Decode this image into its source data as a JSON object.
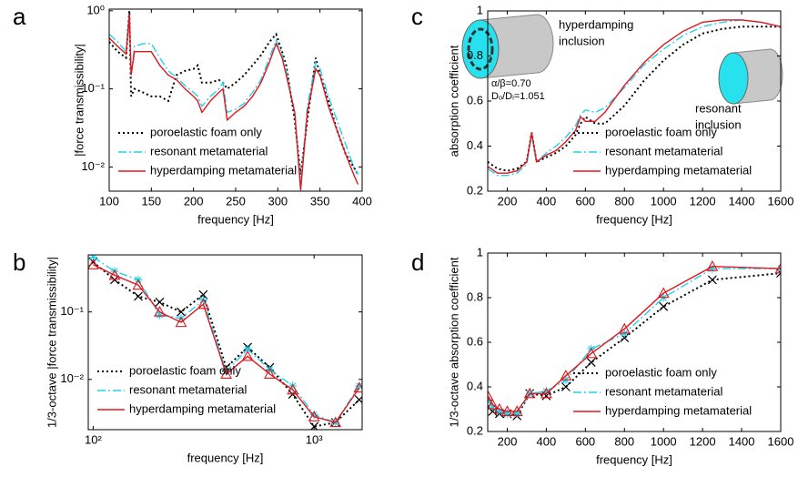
{
  "chart_data": [
    {
      "panel": "a",
      "type": "line",
      "xlabel": "frequency [Hz]",
      "ylabel": "|force transmissibility|",
      "xscale": "linear",
      "yscale": "log",
      "xlim": [
        100,
        400
      ],
      "ylim": [
        0.0049,
        1.05
      ],
      "xticks": [
        100,
        150,
        200,
        250,
        300,
        350,
        400
      ],
      "yticks": [
        {
          "value": 1,
          "label": "10⁰"
        },
        {
          "value": 0.1,
          "label": "10⁻¹"
        },
        {
          "value": 0.01,
          "label": "10⁻²"
        }
      ],
      "legend": "lower left",
      "x": [
        100,
        110,
        120,
        124,
        126,
        130,
        140,
        150,
        160,
        170,
        180,
        190,
        200,
        205,
        210,
        220,
        230,
        235,
        240,
        250,
        260,
        270,
        280,
        290,
        298,
        305,
        310,
        320,
        327,
        335,
        345,
        350,
        360,
        370,
        380,
        390,
        395
      ],
      "series": [
        {
          "name": "poroelastic foam only",
          "color": "#000000",
          "linestyle": "dotted",
          "values": [
            0.4,
            0.3,
            0.25,
            1.0,
            0.08,
            0.1,
            0.09,
            0.08,
            0.08,
            0.07,
            0.15,
            0.17,
            0.18,
            0.2,
            0.12,
            0.12,
            0.13,
            0.12,
            0.1,
            0.12,
            0.15,
            0.2,
            0.27,
            0.4,
            0.5,
            0.3,
            0.2,
            0.04,
            0.008,
            0.04,
            0.25,
            0.15,
            0.07,
            0.03,
            0.015,
            0.01,
            0.008
          ]
        },
        {
          "name": "resonant metamaterial",
          "color": "#1fd3ea",
          "linestyle": "dashdot",
          "values": [
            0.5,
            0.4,
            0.3,
            0.9,
            0.15,
            0.35,
            0.38,
            0.38,
            0.25,
            0.17,
            0.14,
            0.11,
            0.09,
            0.08,
            0.06,
            0.08,
            0.1,
            0.12,
            0.05,
            0.055,
            0.065,
            0.09,
            0.13,
            0.25,
            0.42,
            0.28,
            0.17,
            0.05,
            0.006,
            0.06,
            0.22,
            0.18,
            0.08,
            0.04,
            0.02,
            0.01,
            0.008
          ]
        },
        {
          "name": "hyperdamping metamaterial",
          "color": "#e3161d",
          "linestyle": "solid",
          "values": [
            0.45,
            0.35,
            0.28,
            0.9,
            0.15,
            0.3,
            0.3,
            0.3,
            0.2,
            0.15,
            0.13,
            0.1,
            0.08,
            0.07,
            0.05,
            0.07,
            0.09,
            0.1,
            0.04,
            0.05,
            0.06,
            0.08,
            0.12,
            0.22,
            0.38,
            0.25,
            0.15,
            0.05,
            0.005,
            0.05,
            0.18,
            0.15,
            0.06,
            0.03,
            0.015,
            0.008,
            0.006
          ]
        }
      ]
    },
    {
      "panel": "b",
      "type": "line",
      "xlabel": "frequency [Hz]",
      "ylabel": "1/3-octave |force transmissibility|",
      "xscale": "log",
      "yscale": "log",
      "xlim": [
        95,
        1650
      ],
      "ylim": [
        0.0018,
        0.7
      ],
      "xticks": [
        {
          "value": 100,
          "label": "10²"
        },
        {
          "value": 1000,
          "label": "10³"
        }
      ],
      "yticks": [
        {
          "value": 0.1,
          "label": "10⁻¹"
        },
        {
          "value": 0.01,
          "label": "10⁻²"
        }
      ],
      "legend": "lower left",
      "x": [
        100,
        125,
        160,
        200,
        250,
        315,
        400,
        500,
        630,
        800,
        1000,
        1250,
        1600
      ],
      "series": [
        {
          "name": "poroelastic foam only",
          "color": "#000000",
          "linestyle": "dotted",
          "marker": "x",
          "values": [
            0.55,
            0.3,
            0.17,
            0.14,
            0.1,
            0.18,
            0.015,
            0.03,
            0.015,
            0.006,
            0.002,
            0.0023,
            0.005
          ]
        },
        {
          "name": "resonant metamaterial",
          "color": "#1fd3ea",
          "linestyle": "dashdot",
          "marker": "*",
          "values": [
            0.65,
            0.4,
            0.3,
            0.09,
            0.08,
            0.15,
            0.013,
            0.028,
            0.014,
            0.008,
            0.003,
            0.0023,
            0.008
          ]
        },
        {
          "name": "hyperdamping metamaterial",
          "color": "#e3161d",
          "linestyle": "solid",
          "marker": "^",
          "values": [
            0.5,
            0.35,
            0.25,
            0.1,
            0.07,
            0.13,
            0.012,
            0.022,
            0.012,
            0.007,
            0.0028,
            0.0023,
            0.0075
          ]
        }
      ]
    },
    {
      "panel": "c",
      "type": "line",
      "xlabel": "frequency [Hz]",
      "ylabel": "absorption coefficient",
      "xscale": "linear",
      "yscale": "linear",
      "xlim": [
        100,
        1600
      ],
      "ylim": [
        0.2,
        1
      ],
      "xticks": [
        200,
        400,
        600,
        800,
        1000,
        1200,
        1400,
        1600
      ],
      "yticks": [
        0.2,
        0.4,
        0.6,
        0.8,
        1
      ],
      "legend": "lower right",
      "annotations": [
        "hyperdamping",
        "inclusion",
        "α/β=0.70",
        "Dₒ/Dᵢ=1.051",
        "resonant",
        "inclusion"
      ],
      "x": [
        100,
        150,
        200,
        250,
        300,
        325,
        350,
        400,
        450,
        500,
        550,
        575,
        600,
        650,
        700,
        800,
        900,
        1000,
        1100,
        1200,
        1300,
        1400,
        1500,
        1600
      ],
      "series": [
        {
          "name": "poroelastic foam only",
          "color": "#000000",
          "linestyle": "dotted",
          "values": [
            0.33,
            0.3,
            0.29,
            0.3,
            0.33,
            0.46,
            0.33,
            0.35,
            0.37,
            0.4,
            0.45,
            0.5,
            0.53,
            0.5,
            0.5,
            0.58,
            0.69,
            0.78,
            0.85,
            0.9,
            0.92,
            0.93,
            0.93,
            0.93
          ]
        },
        {
          "name": "resonant metamaterial",
          "color": "#1fd3ea",
          "linestyle": "dashdot",
          "values": [
            0.3,
            0.27,
            0.27,
            0.28,
            0.32,
            0.45,
            0.33,
            0.37,
            0.4,
            0.44,
            0.49,
            0.54,
            0.56,
            0.55,
            0.57,
            0.66,
            0.76,
            0.83,
            0.89,
            0.93,
            0.95,
            0.96,
            0.95,
            0.93
          ]
        },
        {
          "name": "hyperdamping metamaterial",
          "color": "#e3161d",
          "linestyle": "solid",
          "values": [
            0.31,
            0.28,
            0.28,
            0.29,
            0.33,
            0.46,
            0.33,
            0.36,
            0.38,
            0.42,
            0.47,
            0.53,
            0.51,
            0.51,
            0.55,
            0.67,
            0.77,
            0.85,
            0.91,
            0.95,
            0.96,
            0.96,
            0.95,
            0.93
          ]
        }
      ]
    },
    {
      "panel": "d",
      "type": "line",
      "xlabel": "frequency [Hz]",
      "ylabel": "1/3-octave absorption coefficient",
      "xscale": "linear",
      "yscale": "linear",
      "xlim": [
        100,
        1600
      ],
      "ylim": [
        0.2,
        1
      ],
      "xticks": [
        200,
        400,
        600,
        800,
        1000,
        1200,
        1400,
        1600
      ],
      "yticks": [
        0.2,
        0.4,
        0.6,
        0.8,
        1
      ],
      "legend": "lower right",
      "x": [
        100,
        125,
        160,
        200,
        250,
        315,
        400,
        500,
        630,
        800,
        1000,
        1250,
        1600
      ],
      "series": [
        {
          "name": "poroelastic foam only",
          "color": "#000000",
          "linestyle": "dotted",
          "marker": "x",
          "values": [
            0.31,
            0.29,
            0.28,
            0.28,
            0.27,
            0.37,
            0.36,
            0.4,
            0.51,
            0.62,
            0.76,
            0.88,
            0.91
          ]
        },
        {
          "name": "resonant metamaterial",
          "color": "#1fd3ea",
          "linestyle": "dashdot",
          "marker": "*",
          "values": [
            0.34,
            0.31,
            0.29,
            0.28,
            0.28,
            0.37,
            0.38,
            0.43,
            0.57,
            0.64,
            0.8,
            0.93,
            0.93
          ]
        },
        {
          "name": "hyperdamping metamaterial",
          "color": "#e3161d",
          "linestyle": "solid",
          "marker": "^",
          "values": [
            0.36,
            0.32,
            0.3,
            0.29,
            0.29,
            0.37,
            0.37,
            0.45,
            0.55,
            0.66,
            0.82,
            0.94,
            0.93
          ]
        }
      ]
    }
  ]
}
